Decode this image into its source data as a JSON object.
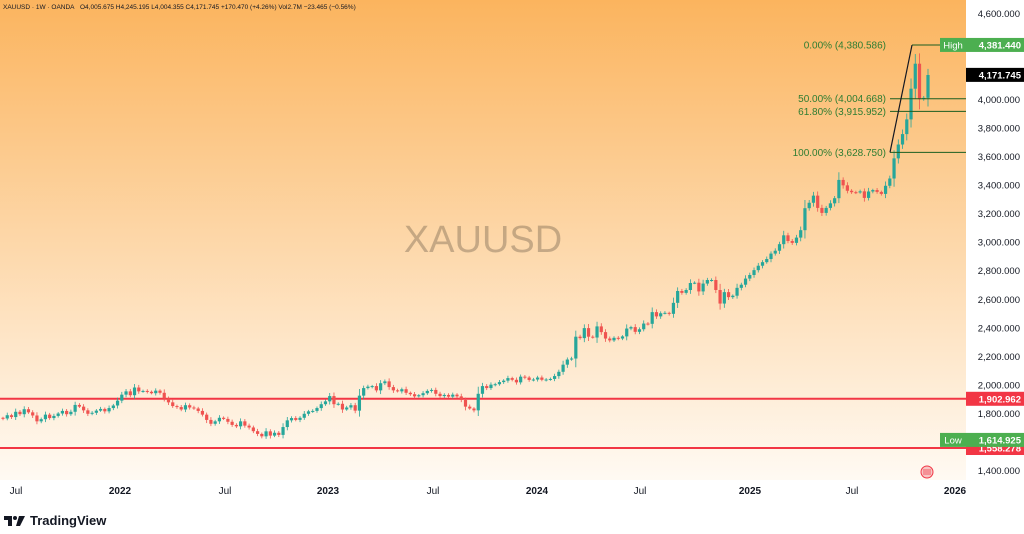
{
  "header": {
    "symbol": "XAUUSD · 1W · OANDA",
    "ohlc": "O4,005.675  H4,245.195  L4,004.355  C4,171.745  +170.470 (+4.26%)  Vol2.7M  −23.465 (−0.56%)"
  },
  "watermark": "XAUUSD",
  "brand": "TradingView",
  "colors": {
    "up": "#26a69a",
    "down": "#ef5350",
    "fib_line": "#1b5e20",
    "fib_text": "#2e7d32",
    "hline": "#f23645",
    "bg_top": "#fbb45e",
    "bg_bottom": "#fffaf3"
  },
  "chart_data": {
    "type": "candlestick",
    "symbol": "XAUUSD",
    "timeframe": "1W",
    "x_tick_labels": [
      "Jul",
      "2022",
      "Jul",
      "2023",
      "Jul",
      "2024",
      "Jul",
      "2025",
      "Jul",
      "2026"
    ],
    "y_ticks": [
      1400,
      1600,
      1800,
      2000,
      2200,
      2400,
      2600,
      2800,
      3000,
      3200,
      3400,
      3600,
      3800,
      4000,
      4200,
      4400,
      4600
    ],
    "y_tick_labels": [
      "1,400.000",
      "1,600.000",
      "1,800.000",
      "2,000.000",
      "2,200.000",
      "2,400.000",
      "2,600.000",
      "2,800.000",
      "3,000.000",
      "3,200.000",
      "3,400.000",
      "3,600.000",
      "3,800.000",
      "4,000.000",
      "4,200.000",
      "4,400.000",
      "4,600.000"
    ],
    "ylim": [
      1370,
      4680
    ],
    "price_labels": {
      "high": {
        "label": "High",
        "value": "4,381.440"
      },
      "current": {
        "value": "4,171.745"
      },
      "support": {
        "value": "1,902.962"
      },
      "low": {
        "label": "Low",
        "value": "1,614.925"
      },
      "low_line": {
        "value": "1,558.278"
      }
    },
    "horizontal_lines": [
      1902.962,
      1558.278
    ],
    "fib_levels": [
      {
        "label": "0.00% (4,380.586)",
        "value": 4380.586
      },
      {
        "label": "50.00% (4,004.668)",
        "value": 4004.668
      },
      {
        "label": "61.80% (3,915.952)",
        "value": 3915.952
      },
      {
        "label": "100.00% (3,628.750)",
        "value": 3628.75
      }
    ],
    "trend_line": {
      "from": 3628.75,
      "to": 4380.586
    },
    "closes": [
      1765,
      1788,
      1775,
      1812,
      1795,
      1830,
      1808,
      1786,
      1745,
      1760,
      1792,
      1768,
      1783,
      1800,
      1818,
      1795,
      1812,
      1860,
      1848,
      1822,
      1798,
      1805,
      1820,
      1832,
      1815,
      1838,
      1856,
      1890,
      1932,
      1955,
      1928,
      1982,
      1955,
      1958,
      1952,
      1942,
      1960,
      1945,
      1905,
      1878,
      1852,
      1845,
      1828,
      1858,
      1842,
      1835,
      1818,
      1792,
      1755,
      1728,
      1745,
      1770,
      1762,
      1742,
      1720,
      1710,
      1745,
      1715,
      1702,
      1676,
      1657,
      1640,
      1675,
      1645,
      1665,
      1650,
      1705,
      1752,
      1768,
      1755,
      1770,
      1798,
      1815,
      1818,
      1838,
      1865,
      1885,
      1922,
      1865,
      1868,
      1828,
      1842,
      1858,
      1820,
      1925,
      1978,
      1988,
      1992,
      1962,
      2012,
      2025,
      1985,
      1962,
      1955,
      1970,
      1945,
      1935,
      1920,
      1928,
      1942,
      1958,
      1965,
      1938,
      1922,
      1930,
      1918,
      1932,
      1920,
      1895,
      1848,
      1835,
      1822,
      1938,
      1992,
      1978,
      2002,
      2005,
      2020,
      2030,
      2048,
      2036,
      2018,
      2058,
      2052,
      2035,
      2038,
      2052,
      2036,
      2038,
      2042,
      2062,
      2092,
      2142,
      2178,
      2185,
      2338,
      2328,
      2398,
      2338,
      2332,
      2410,
      2370,
      2325,
      2312,
      2330,
      2325,
      2340,
      2395,
      2405,
      2372,
      2390,
      2430,
      2428,
      2510,
      2480,
      2502,
      2505,
      2498,
      2575,
      2658,
      2645,
      2665,
      2714,
      2716,
      2655,
      2710,
      2735,
      2735,
      2665,
      2570,
      2650,
      2615,
      2625,
      2680,
      2702,
      2745,
      2770,
      2804,
      2835,
      2860,
      2882,
      2920,
      2940,
      2986,
      3048,
      3008,
      2995,
      3032,
      3084,
      3238,
      3276,
      3326,
      3240,
      3205,
      3240,
      3272,
      3308,
      3436,
      3398,
      3360,
      3350,
      3348,
      3356,
      3310,
      3355,
      3365,
      3352,
      3338,
      3395,
      3446,
      3587,
      3684,
      3757,
      3860,
      4075,
      4250,
      4002,
      4011,
      4171
    ]
  }
}
